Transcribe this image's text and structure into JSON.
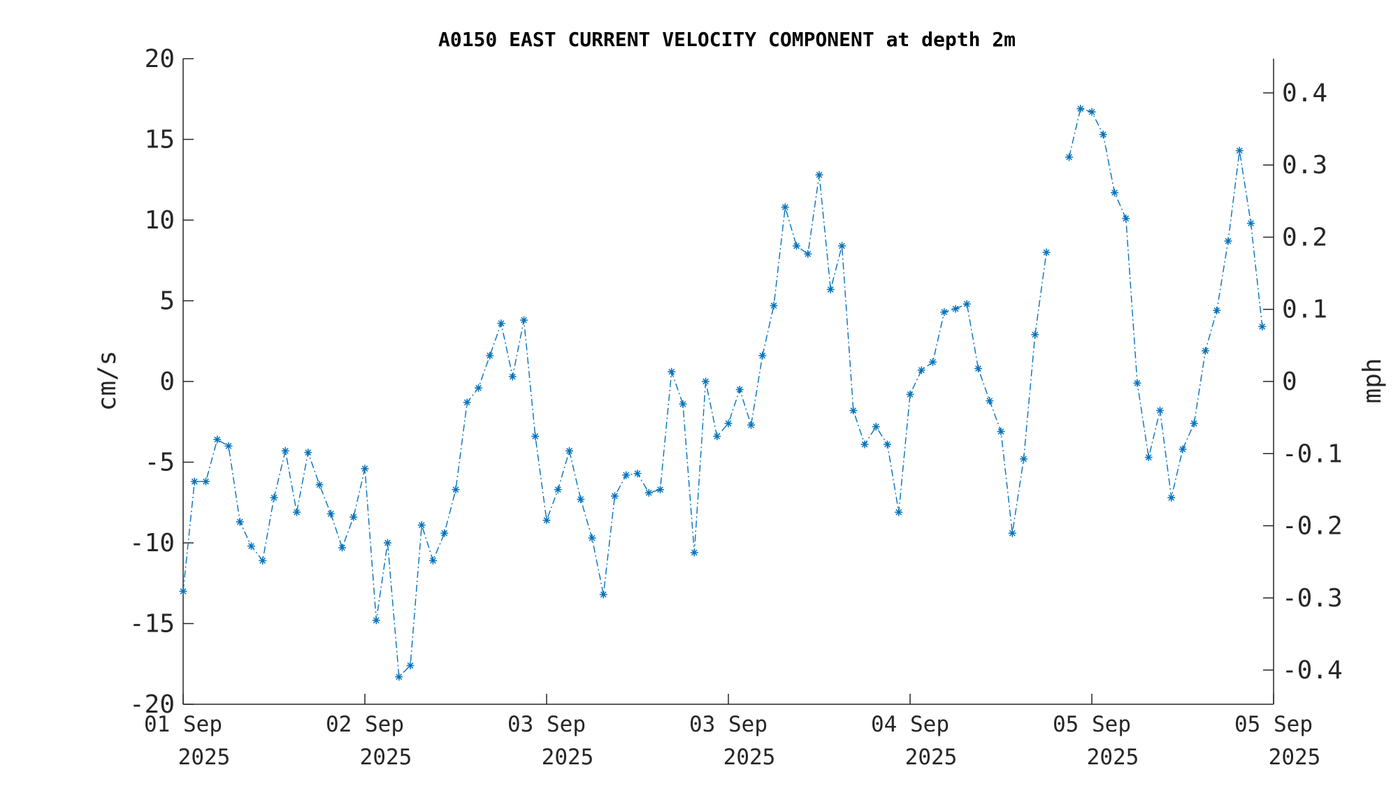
{
  "chart_data": {
    "type": "line",
    "title": "A0150 EAST CURRENT VELOCITY COMPONENT at depth 2m",
    "ylabel": "cm/s",
    "ylabel_right": "mph",
    "ylim": [
      -20,
      20
    ],
    "yticks": [
      "20",
      "15",
      "10",
      "5",
      "0",
      "-5",
      "-10",
      "-15",
      "-20"
    ],
    "y2lim": [
      -0.4474,
      0.4474
    ],
    "y2ticks": [
      "0.4",
      "0.3",
      "0.2",
      "0.1",
      "0",
      "-0.1",
      "-0.2",
      "-0.3",
      "-0.4"
    ],
    "xlim": [
      0,
      96
    ],
    "xticks": [
      {
        "day": "01 Sep",
        "year": "2025",
        "x": 0
      },
      {
        "day": "02 Sep",
        "year": "2025",
        "x": 16
      },
      {
        "day": "03 Sep",
        "year": "2025",
        "x": 32
      },
      {
        "day": "03 Sep",
        "year": "2025",
        "x": 48
      },
      {
        "day": "04 Sep",
        "year": "2025",
        "x": 64
      },
      {
        "day": "05 Sep",
        "year": "2025",
        "x": 80
      },
      {
        "day": "05 Sep",
        "year": "2025",
        "x": 96
      }
    ],
    "series": [
      {
        "color": "#0072bd",
        "marker": "asterisk",
        "line_style": "dash-dot",
        "values": [
          -13.0,
          -6.2,
          -6.2,
          -3.6,
          -4.0,
          -8.7,
          -10.2,
          -11.1,
          -7.2,
          -4.3,
          -8.1,
          -4.4,
          -6.4,
          -8.2,
          -10.3,
          -8.4,
          -5.4,
          -14.8,
          -10.0,
          -18.3,
          -17.6,
          -8.9,
          -11.1,
          -9.4,
          -6.7,
          -1.3,
          -0.4,
          1.6,
          3.6,
          0.3,
          3.8,
          -3.4,
          -8.6,
          -6.7,
          -4.3,
          -7.3,
          -9.7,
          -13.2,
          -7.1,
          -5.8,
          -5.7,
          -6.9,
          -6.7,
          0.6,
          -1.4,
          -10.6,
          0.0,
          -3.4,
          -2.6,
          -0.5,
          -2.7,
          1.6,
          4.7,
          10.8,
          8.4,
          7.9,
          12.8,
          5.7,
          8.4,
          -1.8,
          -3.9,
          -2.8,
          -3.9,
          -8.1,
          -0.8,
          0.7,
          1.2,
          4.3,
          4.5,
          4.8,
          0.8,
          -1.2,
          -3.1,
          -9.4,
          -4.8,
          2.9,
          8.0,
          null,
          13.9,
          16.9,
          16.7,
          15.3,
          11.7,
          10.1,
          -0.1,
          -4.7,
          -1.8,
          -7.2,
          -4.2,
          -2.6,
          1.9,
          4.4,
          8.7,
          14.3,
          9.8,
          3.4
        ]
      }
    ],
    "grid": false,
    "legend": "none"
  }
}
